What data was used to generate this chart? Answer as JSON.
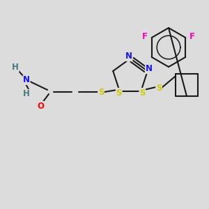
{
  "bg_color": "#dcdcdc",
  "bond_color": "#1a1a1a",
  "bond_lw": 1.5,
  "atom_colors": {
    "N": "#1414ff",
    "S": "#cccc00",
    "O": "#ff0000",
    "F": "#ff00bb",
    "C": "#1a1a1a",
    "H": "#4a7a7a"
  },
  "font_size": 8.5
}
